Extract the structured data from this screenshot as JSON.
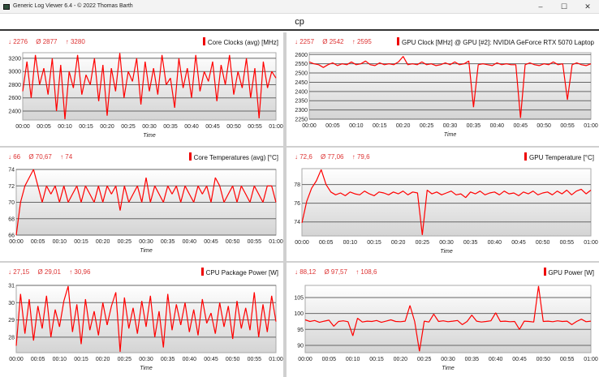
{
  "window": {
    "title": "Generic Log Viewer 6.4 - © 2022 Thomas Barth",
    "minimize": "–",
    "maximize": "☐",
    "close": "✕"
  },
  "header": {
    "title": "cp"
  },
  "line_color": "#ff0000",
  "chart_data": [
    {
      "type": "line",
      "title": "Core Clocks (avg) [MHz]",
      "stats": {
        "min": "↓ 2276",
        "avg": "Ø 2877",
        "max": "↑ 3280"
      },
      "xlabel": "Time",
      "xlim": [
        "00:00",
        "01:00"
      ],
      "xticks": [
        "00:00",
        "00:05",
        "00:10",
        "00:15",
        "00:20",
        "00:25",
        "00:30",
        "00:35",
        "00:40",
        "00:45",
        "00:50",
        "00:55",
        "01:00"
      ],
      "ylim": [
        2265,
        3285
      ],
      "yticks": [
        2400,
        2600,
        2800,
        3000,
        3200
      ],
      "grid": true,
      "values": [
        2700,
        3150,
        2600,
        3250,
        2800,
        3050,
        2650,
        3200,
        2400,
        3100,
        2276,
        3000,
        2750,
        3250,
        2650,
        2950,
        2800,
        3200,
        2550,
        3100,
        2330,
        3050,
        2700,
        3280,
        2600,
        3000,
        2850,
        3200,
        2500,
        3150,
        2700,
        3050,
        2650,
        3250,
        2800,
        2900,
        2450,
        3200,
        2750,
        3050,
        2600,
        3250,
        2700,
        3000,
        2850,
        3150,
        2550,
        3100,
        2800,
        3250,
        2650,
        3000,
        2750,
        3200,
        2600,
        3050,
        2290,
        3150,
        2750,
        3000,
        2900
      ]
    },
    {
      "type": "line",
      "title": "GPU Clock [MHz] @ GPU [#2]: NVIDIA GeForce RTX 5070 Laptop",
      "stats": {
        "min": "↓ 2257",
        "avg": "Ø 2542",
        "max": "↑ 2595"
      },
      "xlabel": "Time",
      "xlim": [
        "00:00",
        "01:00"
      ],
      "xticks": [
        "00:00",
        "00:05",
        "00:10",
        "00:15",
        "00:20",
        "00:25",
        "00:30",
        "00:35",
        "00:40",
        "00:45",
        "00:50",
        "00:55",
        "01:00"
      ],
      "ylim": [
        2250,
        2610
      ],
      "yticks": [
        2250,
        2300,
        2350,
        2400,
        2450,
        2500,
        2550,
        2600
      ],
      "grid": true,
      "values": [
        2560,
        2550,
        2545,
        2530,
        2545,
        2555,
        2540,
        2550,
        2545,
        2560,
        2545,
        2550,
        2565,
        2545,
        2540,
        2555,
        2545,
        2550,
        2545,
        2560,
        2590,
        2545,
        2550,
        2545,
        2560,
        2545,
        2550,
        2540,
        2545,
        2555,
        2545,
        2560,
        2545,
        2550,
        2565,
        2315,
        2545,
        2550,
        2545,
        2540,
        2555,
        2545,
        2550,
        2545,
        2545,
        2257,
        2545,
        2555,
        2545,
        2540,
        2550,
        2545,
        2560,
        2545,
        2550,
        2355,
        2545,
        2555,
        2545,
        2540,
        2550
      ]
    },
    {
      "type": "line",
      "title": "Core Temperatures (avg) [°C]",
      "stats": {
        "min": "↓ 66",
        "avg": "Ø 70,67",
        "max": "↑ 74"
      },
      "xlabel": "Time",
      "xlim": [
        "00:00",
        "01:00"
      ],
      "xticks": [
        "00:00",
        "00:05",
        "00:10",
        "00:15",
        "00:20",
        "00:25",
        "00:30",
        "00:35",
        "00:40",
        "00:45",
        "00:50",
        "00:55",
        "01:00"
      ],
      "ylim": [
        66,
        74
      ],
      "yticks": [
        66,
        68,
        70,
        72,
        74
      ],
      "grid": true,
      "values": [
        66,
        70,
        72,
        73,
        74,
        72,
        70,
        72,
        71,
        72,
        70,
        72,
        70,
        71,
        72,
        70,
        72,
        71,
        70,
        72,
        70,
        72,
        71,
        72,
        69,
        72,
        70,
        71,
        72,
        70,
        73,
        70,
        72,
        71,
        70,
        72,
        71,
        72,
        70,
        72,
        71,
        70,
        72,
        71,
        72,
        70,
        73,
        72,
        70,
        71,
        72,
        70,
        72,
        71,
        70,
        72,
        71,
        70,
        72,
        72,
        70
      ]
    },
    {
      "type": "line",
      "title": "GPU Temperature [°C]",
      "stats": {
        "min": "↓ 72,6",
        "avg": "Ø 77,06",
        "max": "↑ 79,6"
      },
      "xlabel": "Time",
      "xlim": [
        "00:00",
        "01:00"
      ],
      "xticks": [
        "00:00",
        "00:05",
        "00:10",
        "00:15",
        "00:20",
        "00:25",
        "00:30",
        "00:35",
        "00:40",
        "00:45",
        "00:50",
        "00:55",
        "01:00"
      ],
      "ylim": [
        72.5,
        79.7
      ],
      "yticks": [
        74,
        76,
        78
      ],
      "grid": true,
      "values": [
        73.9,
        76.2,
        77.6,
        78.4,
        79.6,
        78.0,
        77.2,
        76.9,
        77.1,
        76.8,
        77.2,
        77.0,
        76.9,
        77.3,
        77.0,
        76.8,
        77.2,
        77.1,
        76.9,
        77.2,
        77.0,
        77.3,
        76.9,
        77.2,
        77.1,
        72.6,
        77.4,
        77.0,
        77.2,
        76.9,
        77.1,
        77.3,
        76.9,
        77.0,
        76.6,
        77.2,
        77.0,
        77.3,
        76.9,
        77.1,
        77.2,
        76.9,
        77.3,
        77.0,
        77.1,
        76.8,
        77.2,
        77.0,
        77.3,
        76.9,
        77.1,
        77.2,
        76.9,
        77.3,
        77.0,
        77.4,
        76.9,
        77.3,
        77.5,
        77.0,
        77.4
      ]
    },
    {
      "type": "line",
      "title": "CPU Package Power [W]",
      "stats": {
        "min": "↓ 27,15",
        "avg": "Ø 29,01",
        "max": "↑ 30,96"
      },
      "xlabel": "Time",
      "xlim": [
        "00:00",
        "01:00"
      ],
      "xticks": [
        "00:00",
        "00:05",
        "00:10",
        "00:15",
        "00:20",
        "00:25",
        "00:30",
        "00:35",
        "00:40",
        "00:45",
        "00:50",
        "00:55",
        "01:00"
      ],
      "ylim": [
        27.1,
        31
      ],
      "yticks": [
        28,
        29,
        30,
        31
      ],
      "grid": true,
      "values": [
        27.5,
        30.5,
        28.2,
        30.2,
        27.8,
        29.8,
        28.5,
        30.4,
        28.0,
        29.6,
        28.6,
        30.1,
        30.96,
        28.3,
        29.9,
        27.6,
        30.2,
        28.4,
        29.5,
        28.1,
        30.0,
        28.7,
        29.8,
        30.6,
        27.15,
        30.3,
        28.5,
        29.7,
        28.2,
        30.1,
        28.6,
        30.4,
        28.0,
        29.5,
        27.4,
        30.5,
        28.4,
        29.9,
        28.7,
        30.0,
        28.3,
        29.6,
        28.1,
        30.2,
        28.8,
        29.4,
        28.2,
        30.0,
        28.6,
        29.8,
        27.9,
        30.1,
        28.5,
        29.7,
        28.4,
        30.6,
        28.0,
        29.9,
        28.3,
        30.4,
        28.9
      ]
    },
    {
      "type": "line",
      "title": "GPU Power [W]",
      "stats": {
        "min": "↓ 88,12",
        "avg": "Ø 97,57",
        "max": "↑ 108,6"
      },
      "xlabel": "Time",
      "xlim": [
        "00:00",
        "01:00"
      ],
      "xticks": [
        "00:00",
        "00:05",
        "00:10",
        "00:15",
        "00:20",
        "00:25",
        "00:30",
        "00:35",
        "00:40",
        "00:45",
        "00:50",
        "00:55",
        "01:00"
      ],
      "ylim": [
        87.7,
        108.8
      ],
      "yticks": [
        90,
        95,
        100,
        105
      ],
      "grid": true,
      "values": [
        98,
        97.5,
        97.8,
        97.2,
        97.6,
        97.9,
        96,
        97.5,
        97.7,
        97.4,
        93,
        98.5,
        97.3,
        97.6,
        97.5,
        97.8,
        97.2,
        97.6,
        98,
        97.5,
        97.4,
        97.6,
        102.5,
        97.5,
        88.12,
        97.6,
        97.3,
        99.8,
        97.5,
        97.7,
        97.4,
        97.6,
        97.8,
        96.5,
        97.5,
        99.5,
        97.6,
        97.3,
        97.5,
        97.7,
        100.2,
        97.5,
        97.6,
        97.4,
        97.5,
        95,
        97.6,
        97.5,
        97.3,
        108.6,
        97.5,
        97.6,
        97.4,
        97.7,
        97.5,
        97.6,
        96.5,
        97.5,
        98.2,
        97.4,
        97.6
      ]
    }
  ]
}
